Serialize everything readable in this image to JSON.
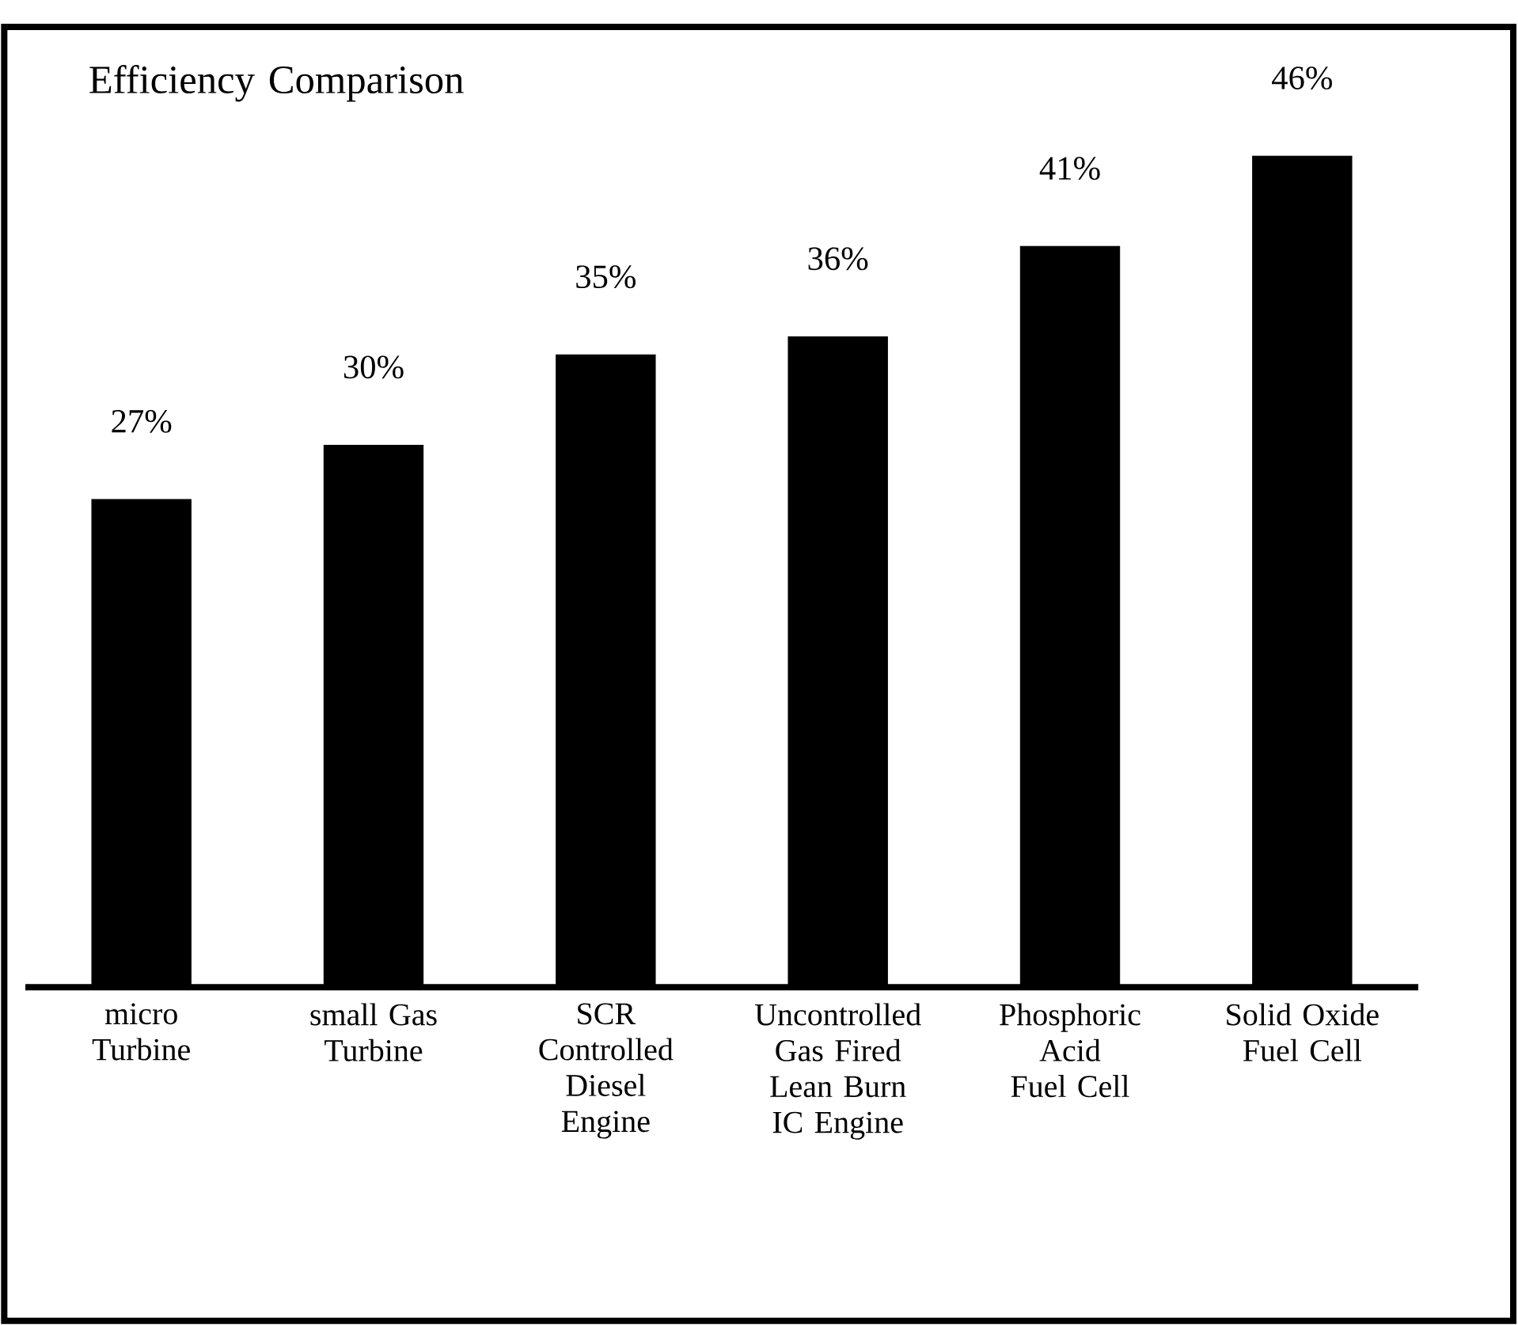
{
  "chart_data": {
    "type": "bar",
    "title": "Efficiency Comparison",
    "categories": [
      "micro Turbine",
      "small Gas Turbine",
      "SCR Controlled Diesel Engine",
      "Uncontrolled Gas Fired Lean Burn IC Engine",
      "Phosphoric Acid Fuel Cell",
      "Solid Oxide Fuel Cell"
    ],
    "values": [
      27,
      30,
      35,
      36,
      41,
      46
    ],
    "value_labels": [
      "27%",
      "30%",
      "35%",
      "36%",
      "41%",
      "46%"
    ],
    "color": "#000000"
  }
}
